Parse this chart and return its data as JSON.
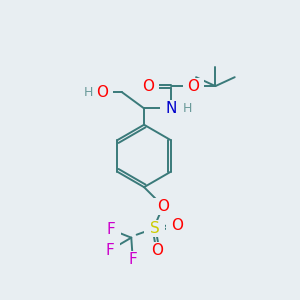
{
  "bg_color": "#e8eef2",
  "atom_colors": {
    "O": "#ff0000",
    "N": "#0000cc",
    "F": "#cc00cc",
    "S": "#cccc00",
    "C": "#3a7a7a",
    "H": "#6a9a9a"
  },
  "bond_color": "#3a7a7a",
  "font_size_atom": 11,
  "font_size_small": 9,
  "figsize": [
    3.0,
    3.0
  ],
  "dpi": 100
}
